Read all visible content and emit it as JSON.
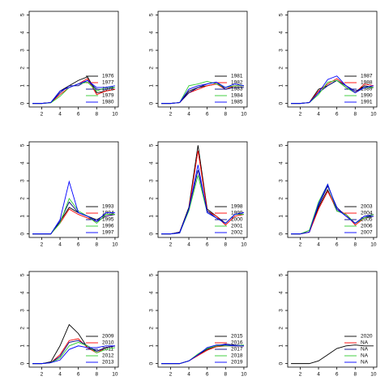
{
  "chart_data": [
    {
      "type": "line",
      "xlim": [
        0.64,
        10.36
      ],
      "ylim": [
        -0.2,
        5.2
      ],
      "xticks": [
        2,
        4,
        6,
        8,
        10
      ],
      "yticks": [
        0,
        1,
        2,
        3,
        4,
        5
      ],
      "legend": "bottom-right",
      "series": [
        {
          "name": "1976",
          "color": "#000000",
          "values": [
            0,
            0,
            0.05,
            0.7,
            1.0,
            1.3,
            1.5,
            0.6,
            0.7,
            0.8
          ]
        },
        {
          "name": "1977",
          "color": "#ff0000",
          "values": [
            0,
            0,
            0.05,
            0.5,
            0.9,
            1.1,
            1.4,
            0.5,
            0.7,
            0.8
          ]
        },
        {
          "name": "1978",
          "color": "#000080",
          "values": [
            0,
            0,
            0.05,
            0.6,
            1.0,
            1.0,
            1.3,
            0.8,
            0.8,
            0.9
          ]
        },
        {
          "name": "1979",
          "color": "#32cd32",
          "values": [
            0,
            0,
            0.03,
            0.4,
            0.9,
            1.1,
            1.2,
            0.7,
            0.9,
            0.9
          ]
        },
        {
          "name": "1980",
          "color": "#0000ff",
          "values": [
            0,
            0,
            0.05,
            0.7,
            0.9,
            1.1,
            1.3,
            0.9,
            0.9,
            1.0
          ]
        }
      ]
    },
    {
      "type": "line",
      "xlim": [
        0.64,
        10.36
      ],
      "ylim": [
        -0.2,
        5.2
      ],
      "xticks": [
        2,
        4,
        6,
        8,
        10
      ],
      "yticks": [
        0,
        1,
        2,
        3,
        4,
        5
      ],
      "legend": "bottom-right",
      "series": [
        {
          "name": "1981",
          "color": "#000000",
          "values": [
            0,
            0,
            0.05,
            0.7,
            0.9,
            1.0,
            1.1,
            0.9,
            1.0,
            1.0
          ]
        },
        {
          "name": "1982",
          "color": "#ff0000",
          "values": [
            0,
            0,
            0.05,
            0.6,
            0.8,
            1.0,
            1.1,
            0.8,
            1.0,
            1.0
          ]
        },
        {
          "name": "1983",
          "color": "#000080",
          "values": [
            0,
            0,
            0.05,
            0.6,
            0.9,
            1.1,
            1.2,
            0.8,
            0.9,
            0.9
          ]
        },
        {
          "name": "1984",
          "color": "#32cd32",
          "values": [
            0,
            0,
            0.05,
            1.0,
            1.1,
            1.25,
            1.1,
            0.9,
            1.0,
            1.0
          ]
        },
        {
          "name": "1985",
          "color": "#0000ff",
          "values": [
            0,
            0,
            0.05,
            0.8,
            1.0,
            1.1,
            1.2,
            0.9,
            1.1,
            1.0
          ]
        }
      ]
    },
    {
      "type": "line",
      "xlim": [
        0.64,
        10.36
      ],
      "ylim": [
        -0.2,
        5.2
      ],
      "xticks": [
        2,
        4,
        6,
        8,
        10
      ],
      "yticks": [
        0,
        1,
        2,
        3,
        4,
        5
      ],
      "legend": "bottom-right",
      "series": [
        {
          "name": "1987",
          "color": "#000000",
          "values": [
            0,
            0,
            0.05,
            0.8,
            1.0,
            1.3,
            0.9,
            0.6,
            1.0,
            0.9
          ]
        },
        {
          "name": "1988",
          "color": "#ff0000",
          "values": [
            0,
            0,
            0.05,
            0.7,
            1.1,
            1.4,
            1.0,
            0.6,
            1.1,
            1.0
          ]
        },
        {
          "name": "1989",
          "color": "#000080",
          "values": [
            0,
            0,
            0.05,
            0.6,
            1.0,
            1.3,
            1.0,
            0.7,
            0.9,
            0.9
          ]
        },
        {
          "name": "1990",
          "color": "#32cd32",
          "values": [
            0,
            0,
            0.05,
            0.5,
            1.2,
            1.3,
            0.9,
            0.6,
            0.9,
            0.9
          ]
        },
        {
          "name": "1991",
          "color": "#0000ff",
          "values": [
            0,
            0,
            0.05,
            0.6,
            1.35,
            1.55,
            1.0,
            0.6,
            0.9,
            1.0
          ]
        }
      ]
    },
    {
      "type": "line",
      "xlim": [
        0.64,
        10.36
      ],
      "ylim": [
        -0.2,
        5.2
      ],
      "xticks": [
        2,
        4,
        6,
        8,
        10
      ],
      "yticks": [
        0,
        1,
        2,
        3,
        4,
        5
      ],
      "legend": "bottom-right",
      "series": [
        {
          "name": "1993",
          "color": "#000000",
          "values": [
            0,
            0,
            0,
            0.7,
            1.5,
            1.2,
            1.0,
            0.8,
            1.1,
            1.1
          ]
        },
        {
          "name": "1994",
          "color": "#ff0000",
          "values": [
            0,
            0,
            0,
            0.6,
            1.4,
            1.1,
            0.9,
            0.7,
            1.0,
            1.1
          ]
        },
        {
          "name": "1995",
          "color": "#000080",
          "values": [
            0,
            0,
            0,
            0.7,
            1.8,
            1.2,
            1.0,
            0.7,
            1.0,
            1.1
          ]
        },
        {
          "name": "1996",
          "color": "#32cd32",
          "values": [
            0,
            0,
            0,
            0.6,
            2.0,
            1.3,
            1.0,
            0.6,
            1.1,
            1.1
          ]
        },
        {
          "name": "1997",
          "color": "#0000ff",
          "values": [
            0,
            0,
            0,
            0.8,
            2.95,
            1.2,
            1.0,
            0.7,
            1.2,
            1.2
          ]
        }
      ]
    },
    {
      "type": "line",
      "xlim": [
        0.64,
        10.36
      ],
      "ylim": [
        -0.2,
        5.2
      ],
      "xticks": [
        2,
        4,
        6,
        8,
        10
      ],
      "yticks": [
        0,
        1,
        2,
        3,
        4,
        5
      ],
      "legend": "bottom-right",
      "series": [
        {
          "name": "1998",
          "color": "#000000",
          "values": [
            0,
            0,
            0.1,
            1.5,
            5.0,
            1.4,
            1.0,
            0.6,
            1.1,
            1.1
          ]
        },
        {
          "name": "1999",
          "color": "#ff0000",
          "values": [
            0,
            0,
            0.1,
            1.4,
            4.7,
            1.3,
            1.0,
            0.5,
            1.0,
            1.1
          ]
        },
        {
          "name": "2000",
          "color": "#000080",
          "values": [
            0,
            0,
            0.1,
            1.4,
            3.6,
            1.3,
            0.9,
            0.6,
            1.1,
            1.2
          ]
        },
        {
          "name": "2001",
          "color": "#32cd32",
          "values": [
            0,
            0,
            0.05,
            1.3,
            3.3,
            1.2,
            0.9,
            0.6,
            1.1,
            1.1
          ]
        },
        {
          "name": "2002",
          "color": "#0000ff",
          "values": [
            0,
            0,
            0.05,
            1.4,
            3.9,
            1.2,
            0.9,
            0.6,
            1.1,
            1.2
          ]
        }
      ]
    },
    {
      "type": "line",
      "xlim": [
        0.64,
        10.36
      ],
      "ylim": [
        -0.2,
        5.2
      ],
      "xticks": [
        2,
        4,
        6,
        8,
        10
      ],
      "yticks": [
        0,
        1,
        2,
        3,
        4,
        5
      ],
      "legend": "bottom-right",
      "series": [
        {
          "name": "2003",
          "color": "#000000",
          "values": [
            0,
            0,
            0.1,
            1.5,
            2.5,
            1.3,
            1.1,
            0.6,
            0.9,
            1.0
          ]
        },
        {
          "name": "2004",
          "color": "#ff0000",
          "values": [
            0,
            0,
            0.1,
            1.4,
            2.4,
            1.4,
            1.1,
            0.5,
            0.9,
            1.1
          ]
        },
        {
          "name": "2005",
          "color": "#000080",
          "values": [
            0,
            0,
            0.2,
            1.6,
            2.7,
            1.5,
            1.0,
            0.6,
            1.0,
            1.1
          ]
        },
        {
          "name": "2006",
          "color": "#32cd32",
          "values": [
            0,
            0,
            0.2,
            1.8,
            2.8,
            1.3,
            1.1,
            0.6,
            0.9,
            1.1
          ]
        },
        {
          "name": "2007",
          "color": "#0000ff",
          "values": [
            0,
            0,
            0.1,
            1.7,
            2.8,
            1.4,
            1.0,
            0.6,
            1.0,
            1.0
          ]
        }
      ]
    },
    {
      "type": "line",
      "xlim": [
        0.64,
        10.36
      ],
      "ylim": [
        -0.2,
        5.2
      ],
      "xticks": [
        2,
        4,
        6,
        8,
        10
      ],
      "yticks": [
        0,
        1,
        2,
        3,
        4,
        5
      ],
      "legend": "bottom-right",
      "series": [
        {
          "name": "2009",
          "color": "#000000",
          "values": [
            0,
            0,
            0.1,
            1.0,
            2.2,
            1.7,
            0.9,
            0.7,
            0.9,
            1.0
          ]
        },
        {
          "name": "2010",
          "color": "#ff0000",
          "values": [
            0,
            0,
            0.05,
            0.5,
            1.3,
            1.4,
            0.9,
            0.6,
            0.9,
            1.0
          ]
        },
        {
          "name": "2011",
          "color": "#000080",
          "values": [
            0,
            0,
            0.05,
            0.4,
            1.2,
            1.3,
            1.0,
            0.7,
            0.9,
            1.0
          ]
        },
        {
          "name": "2012",
          "color": "#32cd32",
          "values": [
            0,
            0,
            0.05,
            0.3,
            1.0,
            1.2,
            1.0,
            0.6,
            0.8,
            0.9
          ]
        },
        {
          "name": "2013",
          "color": "#0000ff",
          "values": [
            0,
            0,
            0.05,
            0.2,
            0.8,
            1.0,
            0.9,
            0.9,
            1.0,
            1.0
          ]
        }
      ]
    },
    {
      "type": "line",
      "xlim": [
        0.64,
        10.36
      ],
      "ylim": [
        -0.2,
        5.2
      ],
      "xticks": [
        2,
        4,
        6,
        8,
        10
      ],
      "yticks": [
        0,
        1,
        2,
        3,
        4,
        5
      ],
      "legend": "bottom-right",
      "series": [
        {
          "name": "2015",
          "color": "#000000",
          "values": [
            0,
            0,
            0,
            0.15,
            0.5,
            0.8,
            1.0,
            1.05,
            1.0,
            1.0
          ]
        },
        {
          "name": "2016",
          "color": "#ff0000",
          "values": [
            0,
            0,
            0,
            0.15,
            0.45,
            0.75,
            0.95,
            1.0,
            1.0,
            1.0
          ]
        },
        {
          "name": "2017",
          "color": "#000080",
          "values": [
            0,
            0,
            0,
            0.15,
            0.5,
            0.85,
            1.0,
            1.1,
            1.05,
            1.0
          ]
        },
        {
          "name": "2018",
          "color": "#32cd32",
          "values": [
            0,
            0,
            0,
            0.15,
            0.55,
            0.85,
            1.0,
            1.0,
            1.0,
            1.05
          ]
        },
        {
          "name": "2019",
          "color": "#0000ff",
          "values": [
            0,
            0,
            0,
            0.15,
            0.5,
            0.9,
            1.05,
            1.05,
            1.0,
            1.0
          ]
        }
      ]
    },
    {
      "type": "line",
      "xlim": [
        0.64,
        10.36
      ],
      "ylim": [
        -0.2,
        5.2
      ],
      "xticks": [
        2,
        4,
        6,
        8,
        10
      ],
      "yticks": [
        0,
        1,
        2,
        3,
        4,
        5
      ],
      "legend": "bottom-right",
      "series": [
        {
          "name": "2020",
          "color": "#000000",
          "values": [
            0,
            0,
            0,
            0.15,
            0.5,
            0.85,
            1.0,
            1.05,
            1.0,
            1.0
          ]
        },
        {
          "name": "NA",
          "color": "#ff0000",
          "values": [
            null,
            null,
            null,
            null,
            null,
            null,
            null,
            null,
            null,
            null
          ]
        },
        {
          "name": "NA",
          "color": "#000080",
          "values": [
            null,
            null,
            null,
            null,
            null,
            null,
            null,
            null,
            null,
            null
          ]
        },
        {
          "name": "NA",
          "color": "#32cd32",
          "values": [
            null,
            null,
            null,
            null,
            null,
            null,
            null,
            null,
            null,
            null
          ]
        },
        {
          "name": "NA",
          "color": "#0000ff",
          "values": [
            null,
            null,
            null,
            null,
            null,
            null,
            null,
            null,
            null,
            null
          ]
        }
      ]
    }
  ]
}
